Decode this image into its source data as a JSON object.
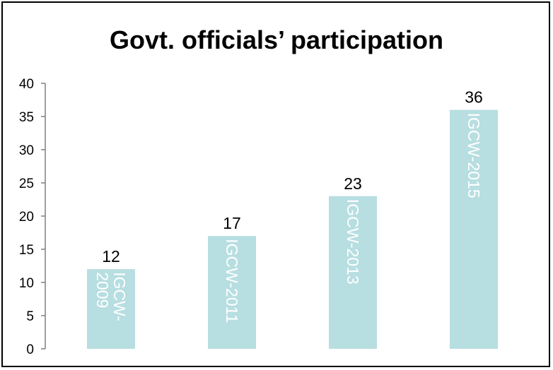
{
  "chart_data": {
    "type": "bar",
    "title": "Govt. officials’ participation",
    "categories": [
      "IGCW-2009",
      "IGCW-2011",
      "IGCW-2013",
      "IGCW-2015"
    ],
    "category_label_lines": [
      [
        "IGCW-",
        "2009"
      ],
      [
        "IGCW-2011"
      ],
      [
        "IGCW-2013"
      ],
      [
        "IGCW-2015"
      ]
    ],
    "values": [
      12,
      17,
      23,
      36
    ],
    "data_labels": [
      "12",
      "17",
      "23",
      "36"
    ],
    "ylim": [
      0,
      40
    ],
    "yticks": [
      "0",
      "5",
      "10",
      "15",
      "20",
      "25",
      "30",
      "35",
      "40"
    ],
    "xlabel": "",
    "ylabel": "",
    "grid": false,
    "legend": "none",
    "bar_color": "#b7dee1",
    "category_label_color": "#ffffff",
    "category_label_orientation": "rotated 90° clockwise, inside bars"
  }
}
